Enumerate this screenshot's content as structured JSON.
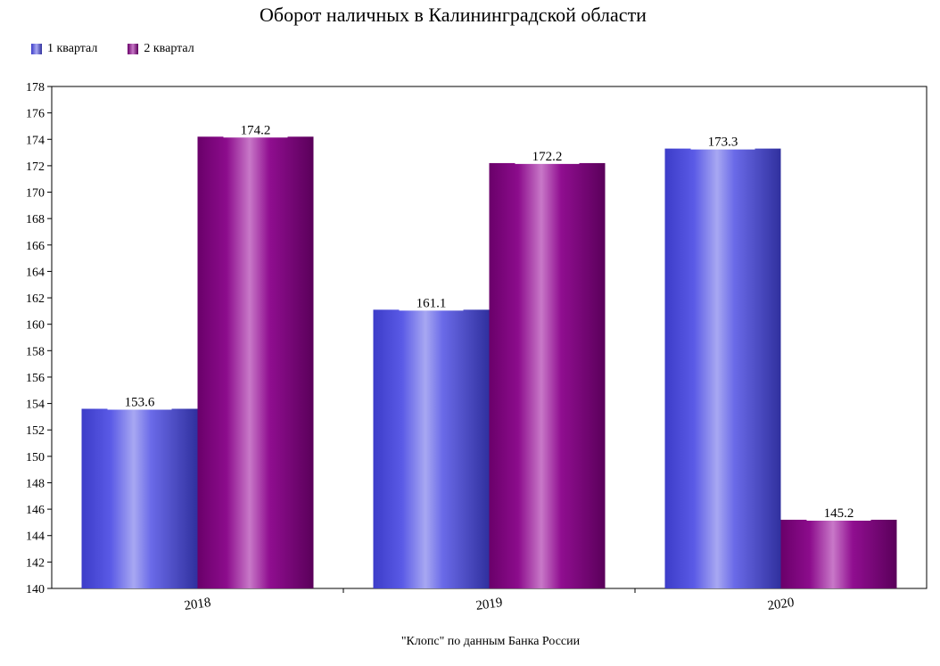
{
  "chart_data": {
    "type": "bar",
    "title": "Оборот наличных в Калининградской области",
    "categories": [
      "2018",
      "2019",
      "2020"
    ],
    "series": [
      {
        "name": "1 квартал",
        "values": [
          153.6,
          161.1,
          173.3
        ],
        "color": "#5a5ae6"
      },
      {
        "name": "2 квартал",
        "values": [
          174.2,
          172.2,
          145.2
        ],
        "color": "#8c0c8c"
      }
    ],
    "value_labels": [
      [
        "153.6",
        "161.1",
        "173.3"
      ],
      [
        "174.2",
        "172.2",
        "145.2"
      ]
    ],
    "ylim": [
      140,
      178
    ],
    "y_ticks": [
      "140",
      "142",
      "144",
      "146",
      "148",
      "150",
      "152",
      "154",
      "156",
      "158",
      "160",
      "162",
      "164",
      "166",
      "168",
      "170",
      "172",
      "174",
      "176",
      "178"
    ],
    "legend_position": "top-left",
    "grid": false
  },
  "source_note": "\"Клопс\" по данным Банка России"
}
